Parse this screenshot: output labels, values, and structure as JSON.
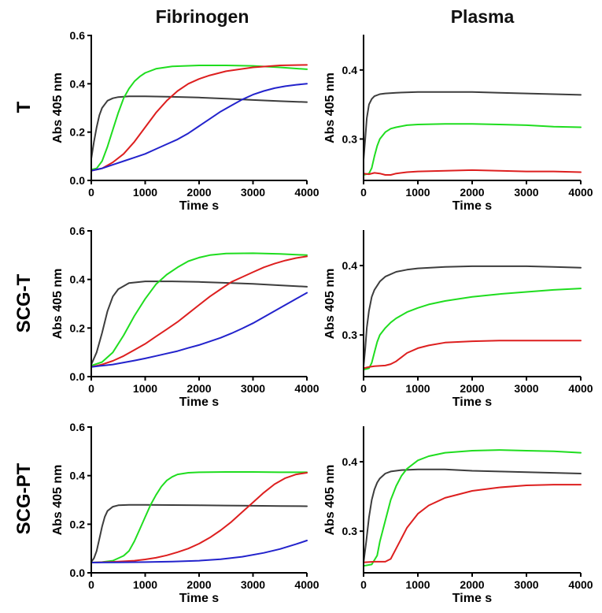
{
  "column_titles": [
    "Fibrinogen",
    "Plasma"
  ],
  "row_labels": [
    "T",
    "SCG-T",
    "SCG-PT"
  ],
  "colors": {
    "gray": "#3d3d3d",
    "green": "#1fdd1f",
    "red": "#dd1f1f",
    "blue": "#2323cc"
  },
  "chart_data": [
    {
      "type": "line",
      "title": "Fibrinogen",
      "row": "T",
      "xlabel": "Time s",
      "ylabel": "Abs 405 nm",
      "xlim": [
        0,
        4000
      ],
      "ylim": [
        0,
        0.6
      ],
      "xticks": [
        0,
        1000,
        2000,
        3000,
        4000
      ],
      "xtick_labels": [
        "0",
        "1000",
        "2000",
        "3000",
        "4000"
      ],
      "yticks": [
        0,
        0.2,
        0.4,
        0.6
      ],
      "ytick_labels": [
        "0.0",
        "0.2",
        "0.4",
        "0.6"
      ],
      "series": [
        {
          "name": "gray",
          "color": "#3d3d3d",
          "x": [
            0,
            50,
            100,
            150,
            200,
            300,
            400,
            500,
            700,
            1000,
            1500,
            2000,
            2500,
            3000,
            3500,
            4000
          ],
          "y": [
            0.09,
            0.16,
            0.22,
            0.27,
            0.3,
            0.33,
            0.34,
            0.345,
            0.348,
            0.348,
            0.346,
            0.343,
            0.338,
            0.333,
            0.328,
            0.324
          ]
        },
        {
          "name": "green",
          "color": "#1fdd1f",
          "x": [
            0,
            100,
            200,
            300,
            400,
            500,
            600,
            700,
            800,
            900,
            1000,
            1200,
            1500,
            2000,
            2500,
            3000,
            3500,
            4000
          ],
          "y": [
            0.045,
            0.05,
            0.08,
            0.14,
            0.21,
            0.28,
            0.34,
            0.38,
            0.41,
            0.43,
            0.445,
            0.462,
            0.472,
            0.476,
            0.476,
            0.474,
            0.468,
            0.46
          ]
        },
        {
          "name": "red",
          "color": "#dd1f1f",
          "x": [
            0,
            200,
            400,
            600,
            800,
            1000,
            1200,
            1400,
            1600,
            1800,
            2000,
            2200,
            2500,
            3000,
            3500,
            4000
          ],
          "y": [
            0.04,
            0.05,
            0.075,
            0.11,
            0.16,
            0.22,
            0.28,
            0.33,
            0.37,
            0.4,
            0.42,
            0.435,
            0.452,
            0.468,
            0.476,
            0.478
          ]
        },
        {
          "name": "blue",
          "color": "#2323cc",
          "x": [
            0,
            200,
            400,
            600,
            800,
            1000,
            1200,
            1400,
            1600,
            1800,
            2000,
            2200,
            2400,
            2600,
            2800,
            3000,
            3200,
            3400,
            3600,
            3800,
            4000
          ],
          "y": [
            0.04,
            0.05,
            0.065,
            0.08,
            0.095,
            0.11,
            0.13,
            0.15,
            0.17,
            0.195,
            0.225,
            0.255,
            0.285,
            0.31,
            0.335,
            0.355,
            0.37,
            0.382,
            0.39,
            0.396,
            0.4
          ]
        }
      ]
    },
    {
      "type": "line",
      "title": "Plasma",
      "row": "T",
      "xlabel": "Time s",
      "ylabel": "Abs 405 nm",
      "xlim": [
        0,
        4000
      ],
      "ylim": [
        0.24,
        0.45
      ],
      "xticks": [
        0,
        1000,
        2000,
        3000,
        4000
      ],
      "xtick_labels": [
        "0",
        "1000",
        "2000",
        "3000",
        "4000"
      ],
      "yticks": [
        0.3,
        0.4
      ],
      "ytick_labels": [
        "0.3",
        "0.4"
      ],
      "series": [
        {
          "name": "gray",
          "color": "#3d3d3d",
          "x": [
            0,
            30,
            60,
            100,
            150,
            200,
            300,
            400,
            600,
            1000,
            1500,
            2000,
            2500,
            3000,
            3500,
            4000
          ],
          "y": [
            0.27,
            0.3,
            0.33,
            0.35,
            0.358,
            0.362,
            0.365,
            0.366,
            0.367,
            0.368,
            0.368,
            0.368,
            0.367,
            0.366,
            0.365,
            0.364
          ]
        },
        {
          "name": "green",
          "color": "#1fdd1f",
          "x": [
            0,
            100,
            150,
            200,
            250,
            300,
            400,
            500,
            600,
            800,
            1000,
            1500,
            2000,
            2500,
            3000,
            3500,
            4000
          ],
          "y": [
            0.248,
            0.25,
            0.258,
            0.275,
            0.29,
            0.3,
            0.31,
            0.315,
            0.317,
            0.32,
            0.321,
            0.322,
            0.322,
            0.321,
            0.32,
            0.318,
            0.317
          ]
        },
        {
          "name": "red",
          "color": "#dd1f1f",
          "x": [
            0,
            100,
            200,
            300,
            400,
            500,
            600,
            800,
            1000,
            1500,
            2000,
            2500,
            3000,
            3500,
            4000
          ],
          "y": [
            0.25,
            0.249,
            0.251,
            0.25,
            0.248,
            0.248,
            0.25,
            0.252,
            0.253,
            0.254,
            0.255,
            0.254,
            0.253,
            0.253,
            0.252
          ]
        }
      ]
    },
    {
      "type": "line",
      "title": "Fibrinogen",
      "row": "SCG-T",
      "xlabel": "Time s",
      "ylabel": "Abs 405 nm",
      "xlim": [
        0,
        4000
      ],
      "ylim": [
        0,
        0.6
      ],
      "xticks": [
        0,
        1000,
        2000,
        3000,
        4000
      ],
      "xtick_labels": [
        "0",
        "1000",
        "2000",
        "3000",
        "4000"
      ],
      "yticks": [
        0,
        0.2,
        0.4,
        0.6
      ],
      "ytick_labels": [
        "0.0",
        "0.2",
        "0.4",
        "0.6"
      ],
      "series": [
        {
          "name": "gray",
          "color": "#3d3d3d",
          "x": [
            0,
            100,
            200,
            300,
            400,
            500,
            700,
            1000,
            1500,
            2000,
            2500,
            3000,
            3500,
            4000
          ],
          "y": [
            0.05,
            0.1,
            0.18,
            0.27,
            0.33,
            0.36,
            0.385,
            0.392,
            0.392,
            0.39,
            0.386,
            0.382,
            0.376,
            0.37
          ]
        },
        {
          "name": "green",
          "color": "#1fdd1f",
          "x": [
            0,
            200,
            400,
            600,
            800,
            1000,
            1200,
            1400,
            1600,
            1800,
            2000,
            2200,
            2500,
            3000,
            3500,
            4000
          ],
          "y": [
            0.045,
            0.06,
            0.1,
            0.17,
            0.25,
            0.32,
            0.38,
            0.42,
            0.45,
            0.475,
            0.49,
            0.5,
            0.507,
            0.508,
            0.505,
            0.5
          ]
        },
        {
          "name": "red",
          "color": "#dd1f1f",
          "x": [
            0,
            200,
            400,
            600,
            800,
            1000,
            1200,
            1400,
            1600,
            1800,
            2000,
            2200,
            2400,
            2600,
            2800,
            3000,
            3200,
            3400,
            3600,
            3800,
            4000
          ],
          "y": [
            0.04,
            0.05,
            0.065,
            0.085,
            0.11,
            0.135,
            0.165,
            0.195,
            0.225,
            0.26,
            0.295,
            0.33,
            0.36,
            0.39,
            0.41,
            0.43,
            0.45,
            0.465,
            0.478,
            0.488,
            0.495
          ]
        },
        {
          "name": "blue",
          "color": "#2323cc",
          "x": [
            0,
            200,
            400,
            600,
            800,
            1000,
            1200,
            1400,
            1600,
            1800,
            2000,
            2200,
            2400,
            2600,
            2800,
            3000,
            3200,
            3400,
            3600,
            3800,
            4000
          ],
          "y": [
            0.04,
            0.045,
            0.05,
            0.058,
            0.066,
            0.075,
            0.085,
            0.095,
            0.105,
            0.118,
            0.13,
            0.145,
            0.16,
            0.178,
            0.198,
            0.22,
            0.245,
            0.27,
            0.295,
            0.32,
            0.345
          ]
        }
      ]
    },
    {
      "type": "line",
      "title": "Plasma",
      "row": "SCG-T",
      "xlabel": "Time s",
      "ylabel": "Abs 405 nm",
      "xlim": [
        0,
        4000
      ],
      "ylim": [
        0.24,
        0.45
      ],
      "xticks": [
        0,
        1000,
        2000,
        3000,
        4000
      ],
      "xtick_labels": [
        "0",
        "1000",
        "2000",
        "3000",
        "4000"
      ],
      "yticks": [
        0.3,
        0.4
      ],
      "ytick_labels": [
        "0.3",
        "0.4"
      ],
      "series": [
        {
          "name": "gray",
          "color": "#3d3d3d",
          "x": [
            0,
            30,
            60,
            100,
            150,
            200,
            300,
            400,
            600,
            800,
            1000,
            1500,
            2000,
            2500,
            3000,
            3500,
            4000
          ],
          "y": [
            0.255,
            0.28,
            0.31,
            0.335,
            0.355,
            0.365,
            0.377,
            0.384,
            0.391,
            0.394,
            0.396,
            0.398,
            0.399,
            0.399,
            0.399,
            0.398,
            0.397
          ]
        },
        {
          "name": "green",
          "color": "#1fdd1f",
          "x": [
            0,
            100,
            150,
            200,
            250,
            300,
            400,
            500,
            600,
            800,
            1000,
            1200,
            1500,
            2000,
            2500,
            3000,
            3500,
            4000
          ],
          "y": [
            0.25,
            0.252,
            0.26,
            0.275,
            0.29,
            0.3,
            0.31,
            0.318,
            0.324,
            0.333,
            0.339,
            0.344,
            0.349,
            0.355,
            0.359,
            0.362,
            0.365,
            0.367
          ]
        },
        {
          "name": "red",
          "color": "#dd1f1f",
          "x": [
            0,
            100,
            200,
            400,
            500,
            600,
            700,
            800,
            1000,
            1200,
            1500,
            2000,
            2500,
            3000,
            3500,
            4000
          ],
          "y": [
            0.252,
            0.254,
            0.255,
            0.256,
            0.258,
            0.262,
            0.268,
            0.274,
            0.281,
            0.285,
            0.289,
            0.291,
            0.292,
            0.292,
            0.292,
            0.292
          ]
        }
      ]
    },
    {
      "type": "line",
      "title": "Fibrinogen",
      "row": "SCG-PT",
      "xlabel": "Time s",
      "ylabel": "Abs 405 nm",
      "xlim": [
        0,
        4000
      ],
      "ylim": [
        0,
        0.6
      ],
      "xticks": [
        0,
        1000,
        2000,
        3000,
        4000
      ],
      "xtick_labels": [
        "0",
        "1000",
        "2000",
        "3000",
        "4000"
      ],
      "yticks": [
        0,
        0.2,
        0.4,
        0.6
      ],
      "ytick_labels": [
        "0.0",
        "0.2",
        "0.4",
        "0.6"
      ],
      "series": [
        {
          "name": "gray",
          "color": "#3d3d3d",
          "x": [
            0,
            50,
            100,
            150,
            200,
            250,
            300,
            400,
            500,
            700,
            1000,
            1500,
            2000,
            2500,
            3000,
            3500,
            4000
          ],
          "y": [
            0.045,
            0.06,
            0.09,
            0.14,
            0.19,
            0.23,
            0.255,
            0.272,
            0.278,
            0.28,
            0.28,
            0.279,
            0.278,
            0.277,
            0.276,
            0.275,
            0.274
          ]
        },
        {
          "name": "green",
          "color": "#1fdd1f",
          "x": [
            0,
            200,
            400,
            600,
            700,
            800,
            900,
            1000,
            1100,
            1200,
            1300,
            1400,
            1500,
            1600,
            1800,
            2000,
            2500,
            3000,
            3500,
            4000
          ],
          "y": [
            0.042,
            0.044,
            0.05,
            0.07,
            0.09,
            0.13,
            0.18,
            0.23,
            0.28,
            0.32,
            0.355,
            0.38,
            0.395,
            0.405,
            0.412,
            0.414,
            0.415,
            0.415,
            0.414,
            0.414
          ]
        },
        {
          "name": "red",
          "color": "#dd1f1f",
          "x": [
            0,
            400,
            800,
            1000,
            1200,
            1400,
            1600,
            1800,
            2000,
            2200,
            2400,
            2600,
            2800,
            3000,
            3200,
            3400,
            3600,
            3800,
            4000
          ],
          "y": [
            0.042,
            0.045,
            0.05,
            0.055,
            0.062,
            0.072,
            0.085,
            0.1,
            0.12,
            0.145,
            0.175,
            0.21,
            0.25,
            0.29,
            0.33,
            0.365,
            0.39,
            0.405,
            0.412
          ]
        },
        {
          "name": "blue",
          "color": "#2323cc",
          "x": [
            0,
            500,
            1000,
            1500,
            2000,
            2400,
            2800,
            3200,
            3500,
            3800,
            4000
          ],
          "y": [
            0.042,
            0.043,
            0.044,
            0.046,
            0.05,
            0.056,
            0.066,
            0.082,
            0.098,
            0.118,
            0.133
          ]
        }
      ]
    },
    {
      "type": "line",
      "title": "Plasma",
      "row": "SCG-PT",
      "xlabel": "Time s",
      "ylabel": "Abs 405 nm",
      "xlim": [
        0,
        4000
      ],
      "ylim": [
        0.24,
        0.45
      ],
      "xticks": [
        0,
        1000,
        2000,
        3000,
        4000
      ],
      "xtick_labels": [
        "0",
        "1000",
        "2000",
        "3000",
        "4000"
      ],
      "yticks": [
        0.3,
        0.4
      ],
      "ytick_labels": [
        "0.3",
        "0.4"
      ],
      "series": [
        {
          "name": "gray",
          "color": "#3d3d3d",
          "x": [
            0,
            50,
            100,
            150,
            200,
            250,
            300,
            400,
            500,
            700,
            1000,
            1500,
            2000,
            2500,
            3000,
            3500,
            4000
          ],
          "y": [
            0.255,
            0.285,
            0.32,
            0.345,
            0.36,
            0.37,
            0.376,
            0.383,
            0.386,
            0.388,
            0.389,
            0.389,
            0.387,
            0.386,
            0.385,
            0.384,
            0.383
          ]
        },
        {
          "name": "green",
          "color": "#1fdd1f",
          "x": [
            0,
            150,
            250,
            300,
            400,
            500,
            600,
            700,
            800,
            1000,
            1200,
            1500,
            2000,
            2500,
            3000,
            3500,
            4000
          ],
          "y": [
            0.25,
            0.252,
            0.265,
            0.285,
            0.315,
            0.345,
            0.365,
            0.38,
            0.39,
            0.402,
            0.408,
            0.413,
            0.416,
            0.417,
            0.416,
            0.415,
            0.413
          ]
        },
        {
          "name": "red",
          "color": "#dd1f1f",
          "x": [
            0,
            200,
            400,
            500,
            600,
            700,
            800,
            1000,
            1200,
            1500,
            2000,
            2500,
            3000,
            3500,
            4000
          ],
          "y": [
            0.255,
            0.256,
            0.256,
            0.26,
            0.275,
            0.29,
            0.305,
            0.325,
            0.337,
            0.348,
            0.358,
            0.363,
            0.366,
            0.367,
            0.367
          ]
        }
      ]
    }
  ]
}
